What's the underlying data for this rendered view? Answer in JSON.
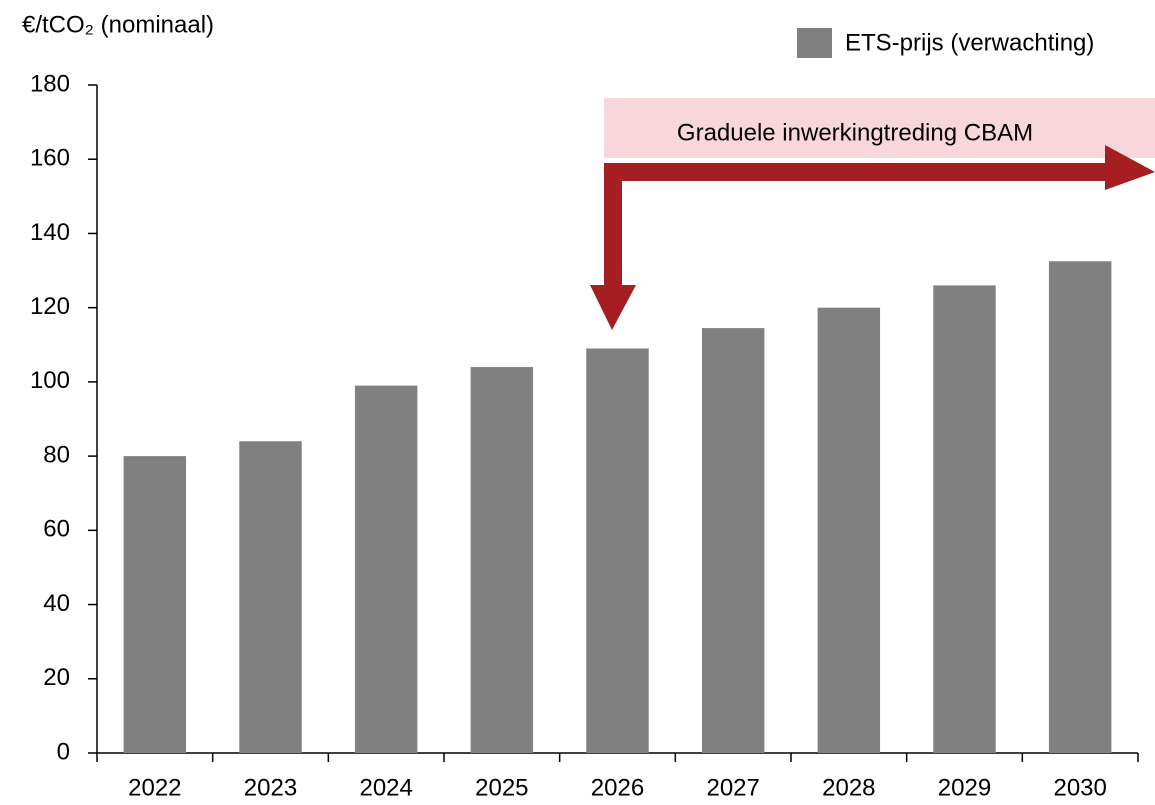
{
  "chart_data": {
    "type": "bar",
    "y_axis_label": "€/tCO₂ (nominaal)",
    "annotation": "Graduele inwerkingtreding CBAM",
    "categories": [
      "2022",
      "2023",
      "2024",
      "2025",
      "2026",
      "2027",
      "2028",
      "2029",
      "2030"
    ],
    "series": [
      {
        "name": "ETS-prijs (verwachting)",
        "color": "#808080",
        "values": [
          80,
          84,
          99,
          104,
          109,
          114.5,
          120,
          126,
          132.5
        ]
      }
    ],
    "ylim": [
      0,
      180
    ],
    "yticks": [
      0,
      20,
      40,
      60,
      80,
      100,
      120,
      140,
      160,
      180
    ],
    "grid": false,
    "legend": "top-right"
  }
}
